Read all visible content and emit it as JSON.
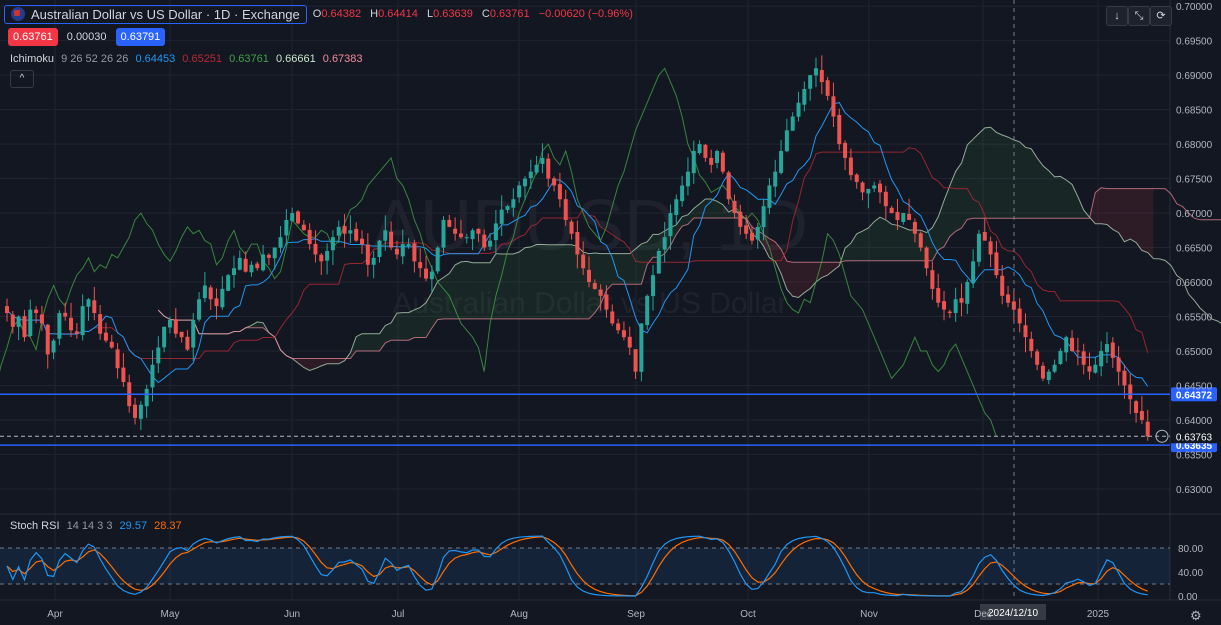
{
  "header": {
    "title": "Australian Dollar vs US Dollar · 1D · Exchange",
    "ohlc": [
      {
        "label": "O",
        "value": "0.64382"
      },
      {
        "label": "H",
        "value": "0.64414"
      },
      {
        "label": "L",
        "value": "0.63639"
      },
      {
        "label": "C",
        "value": "0.63761"
      }
    ],
    "change": "−0.00620 (−0.96%)",
    "sell": "0.63761",
    "spread": "0.00030",
    "buy": "0.63791"
  },
  "ichimoku": {
    "label": "Ichimoku",
    "params": "9 26 52 26 26",
    "values": [
      {
        "value": "0.64453",
        "color": "#2196f3"
      },
      {
        "value": "0.65251",
        "color": "#b72a35"
      },
      {
        "value": "0.63761",
        "color": "#43a047"
      },
      {
        "value": "0.66661",
        "color": "#c8e6c9"
      },
      {
        "value": "0.67383",
        "color": "#f28b9c"
      }
    ]
  },
  "stoch": {
    "label": "Stoch RSI",
    "params": "14 14 3 3",
    "k": "29.57",
    "d": "28.37",
    "k_color": "#2196f3",
    "d_color": "#ff6d00",
    "levels": [
      "80.00",
      "40.00",
      "0.00"
    ]
  },
  "toolbar": {
    "down_icon": "↓",
    "expand_icon": "⤡",
    "refresh_icon": "⟳",
    "collapse_icon": "^"
  },
  "watermark": {
    "symbol": "AUDUSD, 1D",
    "name": "Australian Dollar vs US Dollar"
  },
  "chart_data": {
    "type": "candlestick",
    "price_axis": [
      "0.70000",
      "0.69500",
      "0.69000",
      "0.68500",
      "0.68000",
      "0.67500",
      "0.67000",
      "0.66500",
      "0.66000",
      "0.65500",
      "0.65000",
      "0.64500",
      "0.64000",
      "0.63500",
      "0.63000"
    ],
    "ylim": [
      0.6265,
      0.7009
    ],
    "months": [
      "Apr",
      "May",
      "Jun",
      "Jul",
      "Aug",
      "Sep",
      "Oct",
      "Nov",
      "Dec",
      "2025"
    ],
    "cursor_date": "2024/12/10",
    "horizontal_lines": [
      {
        "price": 0.64372,
        "label": "0.64372",
        "color": "#2962ff"
      },
      {
        "price": 0.63635,
        "label": "0.63635",
        "color": "#2962ff"
      }
    ],
    "last_price": {
      "price": 0.63763,
      "label": "0.63763"
    },
    "closes": [
      0.6555,
      0.6535,
      0.655,
      0.652,
      0.656,
      0.6555,
      0.654,
      0.6495,
      0.6515,
      0.6555,
      0.655,
      0.653,
      0.6525,
      0.6565,
      0.6575,
      0.6555,
      0.6525,
      0.6515,
      0.6505,
      0.6475,
      0.6455,
      0.642,
      0.6403,
      0.6422,
      0.6445,
      0.648,
      0.6505,
      0.6535,
      0.6545,
      0.6525,
      0.652,
      0.6502,
      0.6545,
      0.6575,
      0.6595,
      0.6575,
      0.6565,
      0.659,
      0.661,
      0.662,
      0.6635,
      0.6615,
      0.6625,
      0.662,
      0.664,
      0.6635,
      0.665,
      0.6665,
      0.669,
      0.67,
      0.6685,
      0.6675,
      0.6655,
      0.664,
      0.663,
      0.6645,
      0.6665,
      0.668,
      0.667,
      0.6675,
      0.666,
      0.6655,
      0.6625,
      0.6635,
      0.666,
      0.6675,
      0.665,
      0.664,
      0.6655,
      0.6655,
      0.663,
      0.662,
      0.6605,
      0.6615,
      0.665,
      0.669,
      0.668,
      0.667,
      0.6665,
      0.6665,
      0.6675,
      0.667,
      0.665,
      0.666,
      0.6685,
      0.6705,
      0.671,
      0.672,
      0.674,
      0.675,
      0.676,
      0.677,
      0.678,
      0.675,
      0.674,
      0.672,
      0.669,
      0.667,
      0.664,
      0.662,
      0.66,
      0.659,
      0.658,
      0.656,
      0.654,
      0.653,
      0.652,
      0.6505,
      0.647,
      0.654,
      0.658,
      0.661,
      0.6645,
      0.6665,
      0.67,
      0.672,
      0.674,
      0.676,
      0.679,
      0.68,
      0.678,
      0.677,
      0.679,
      0.676,
      0.672,
      0.67,
      0.668,
      0.667,
      0.666,
      0.668,
      0.671,
      0.674,
      0.676,
      0.679,
      0.682,
      0.684,
      0.686,
      0.688,
      0.69,
      0.691,
      0.689,
      0.687,
      0.684,
      0.68,
      0.678,
      0.6755,
      0.6745,
      0.673,
      0.6735,
      0.674,
      0.673,
      0.671,
      0.67,
      0.669,
      0.67,
      0.669,
      0.667,
      0.665,
      0.662,
      0.659,
      0.657,
      0.656,
      0.6555,
      0.6575,
      0.657,
      0.66,
      0.663,
      0.667,
      0.666,
      0.664,
      0.661,
      0.658,
      0.657,
      0.656,
      0.654,
      0.652,
      0.65,
      0.648,
      0.646,
      0.647,
      0.648,
      0.65,
      0.652,
      0.65,
      0.65,
      0.648,
      0.647,
      0.648,
      0.65,
      0.651,
      0.649,
      0.647,
      0.645,
      0.643,
      0.641,
      0.64,
      0.6376
    ]
  }
}
